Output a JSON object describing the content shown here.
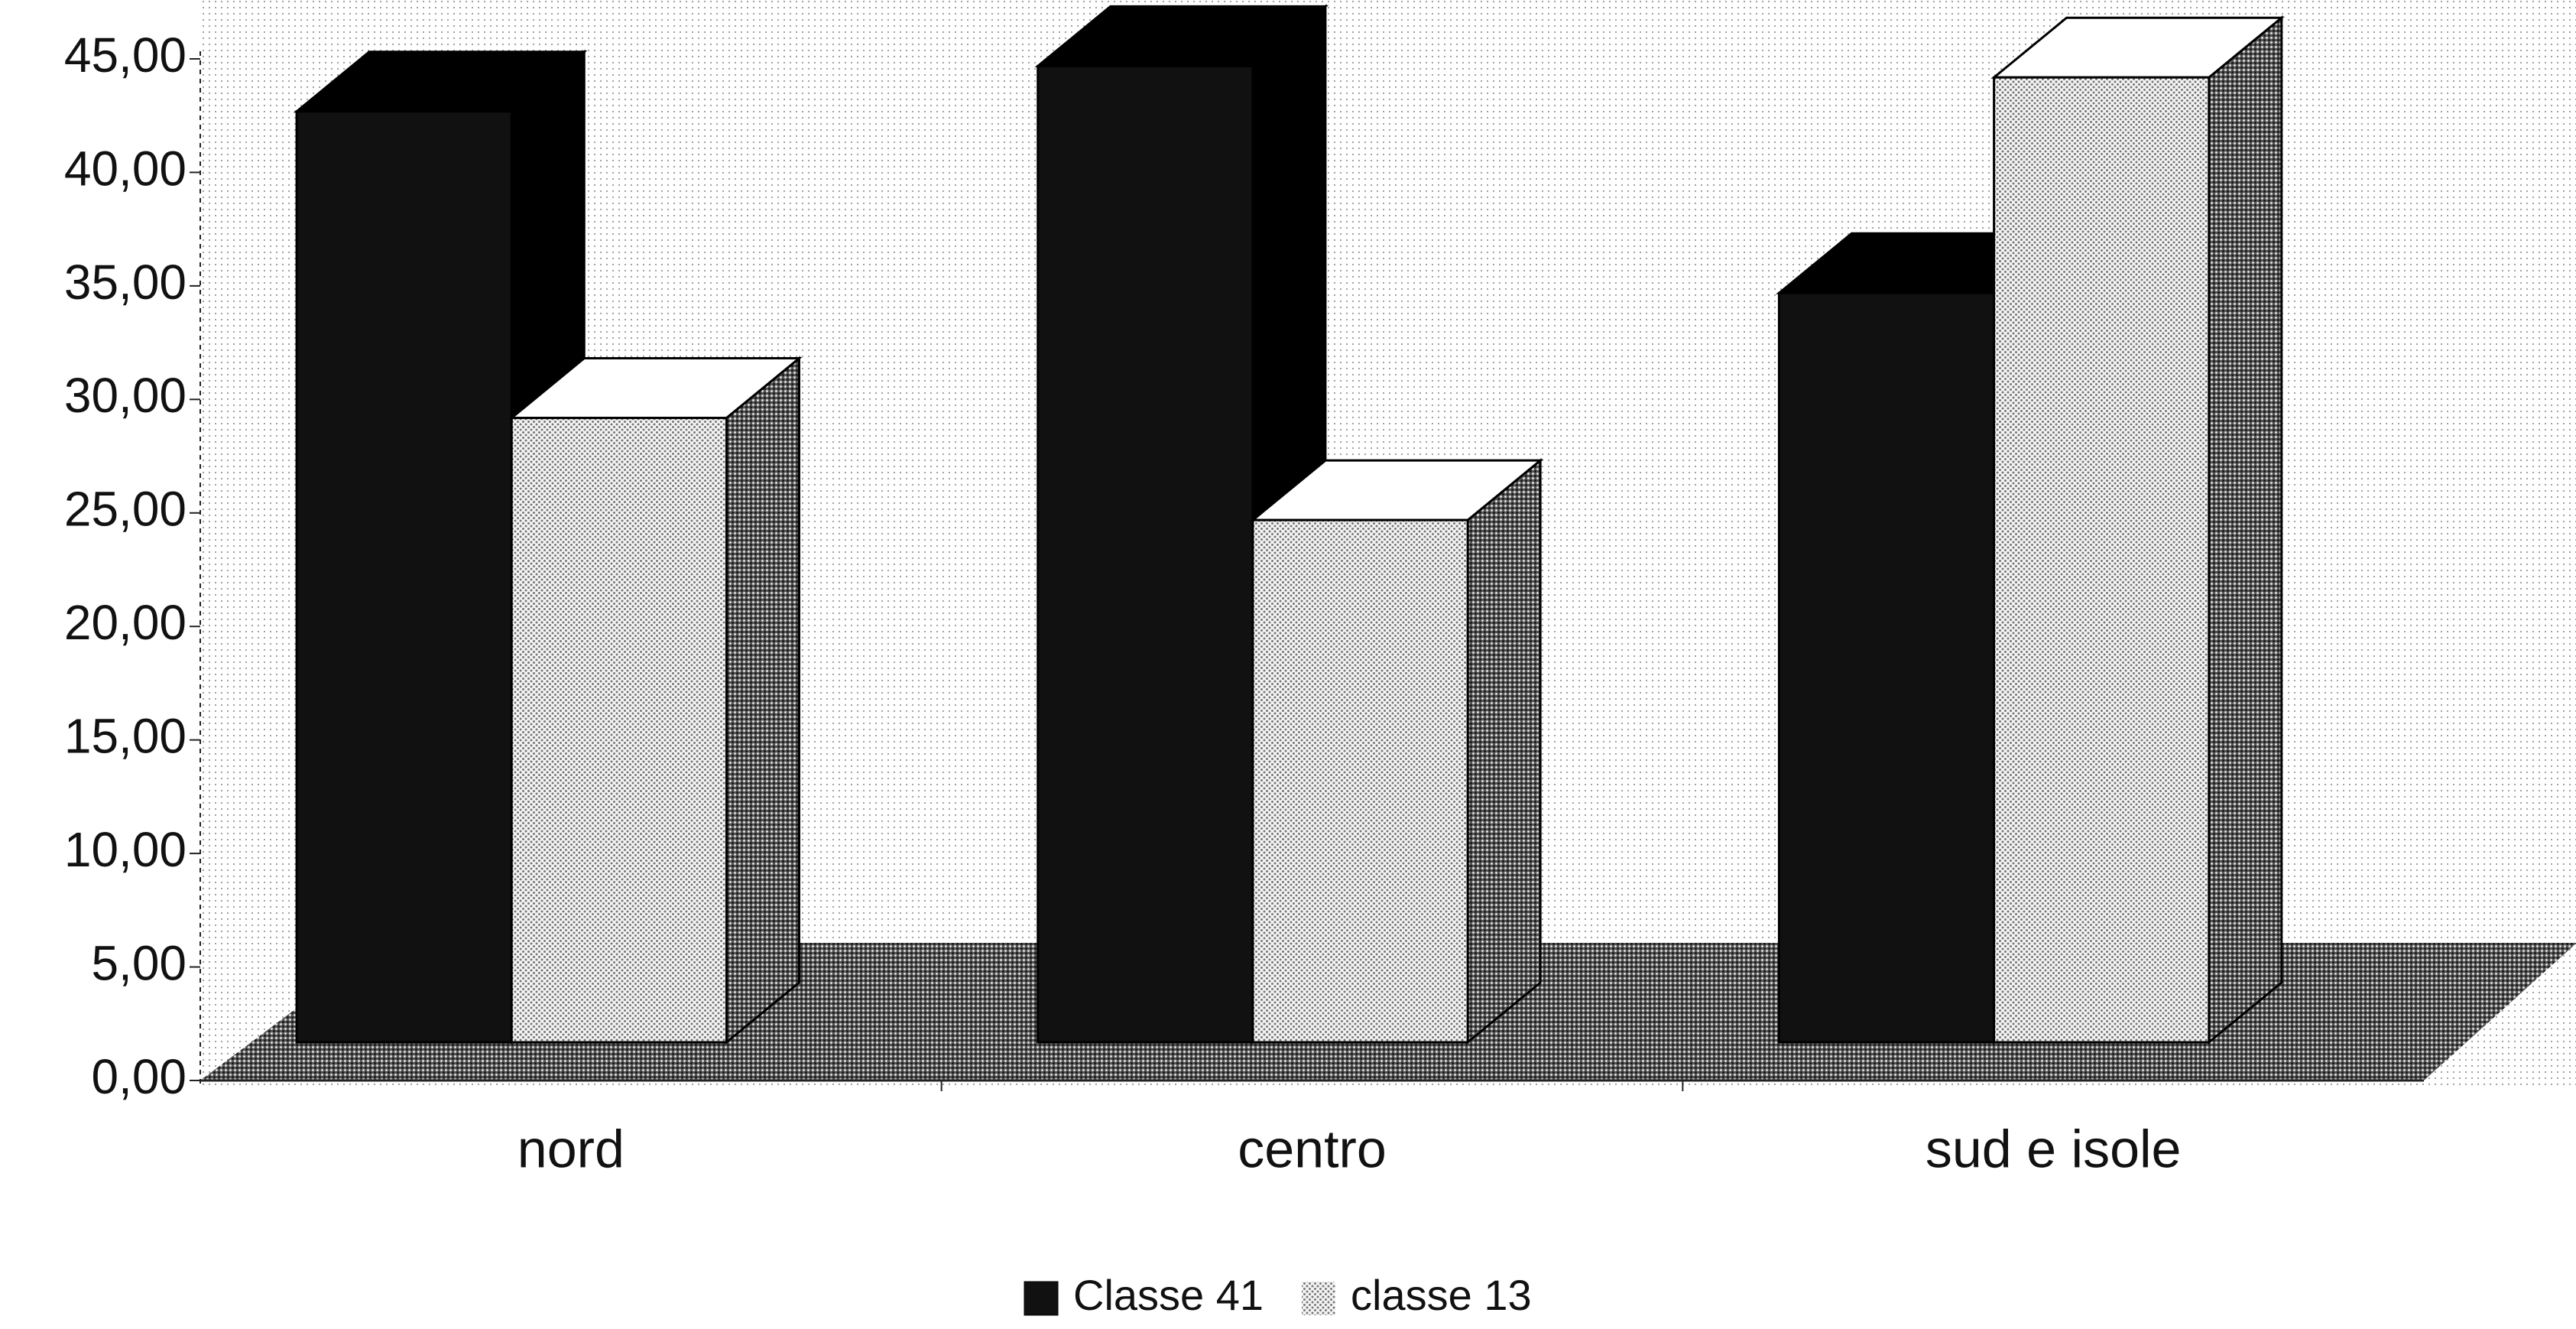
{
  "chart_data": {
    "type": "bar3d",
    "categories": [
      "nord",
      "centro",
      "sud e isole"
    ],
    "series": [
      {
        "name": "Classe 41",
        "color": "#111111",
        "values": [
          41,
          43,
          33
        ]
      },
      {
        "name": "classe 13",
        "color": "#e8e8e8",
        "values": [
          27.5,
          23,
          42.5
        ]
      }
    ],
    "ylim": [
      0,
      45
    ],
    "yticks": [
      {
        "value": 0,
        "label": "0,00"
      },
      {
        "value": 5,
        "label": "5,00"
      },
      {
        "value": 10,
        "label": "10,00"
      },
      {
        "value": 15,
        "label": "15,00"
      },
      {
        "value": 20,
        "label": "20,00"
      },
      {
        "value": 25,
        "label": "25,00"
      },
      {
        "value": 30,
        "label": "30,00"
      },
      {
        "value": 35,
        "label": "35,00"
      },
      {
        "value": 40,
        "label": "40,00"
      },
      {
        "value": 45,
        "label": "45,00"
      }
    ],
    "legend": "bottom"
  }
}
